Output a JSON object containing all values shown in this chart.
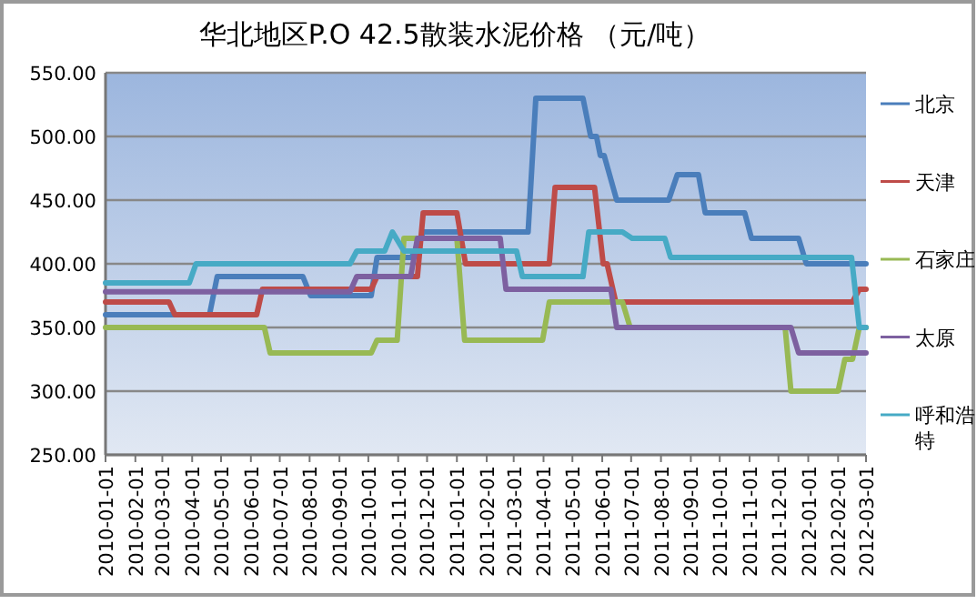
{
  "chart_data": {
    "type": "line",
    "title": "华北地区P.O 42.5散装水泥价格 （元/吨）",
    "ylim": [
      250,
      550
    ],
    "yticks": [
      {
        "value": 250,
        "label": "250.00"
      },
      {
        "value": 300,
        "label": "300.00"
      },
      {
        "value": 350,
        "label": "350.00"
      },
      {
        "value": 400,
        "label": "400.00"
      },
      {
        "value": 450,
        "label": "450.00"
      },
      {
        "value": 500,
        "label": "500.00"
      },
      {
        "value": 550,
        "label": "550.00"
      }
    ],
    "xlim": [
      "2010-01-01",
      "2012-03-01"
    ],
    "xticks": [
      "2010-01-01",
      "2010-02-01",
      "2010-03-01",
      "2010-04-01",
      "2010-05-01",
      "2010-06-01",
      "2010-07-01",
      "2010-08-01",
      "2010-09-01",
      "2010-10-01",
      "2010-11-01",
      "2010-12-01",
      "2011-01-01",
      "2011-02-01",
      "2011-03-01",
      "2011-04-01",
      "2011-05-01",
      "2011-06-01",
      "2011-07-01",
      "2011-08-01",
      "2011-09-01",
      "2011-10-01",
      "2011-11-01",
      "2011-12-01",
      "2012-01-01",
      "2012-02-01",
      "2012-03-01"
    ],
    "grid": "y",
    "legend": "right",
    "series": [
      {
        "name": "北京",
        "color": "#4a7ebb",
        "x": [
          "2010-01-01",
          "2010-04-19",
          "2010-04-27",
          "2010-07-25",
          "2010-08-02",
          "2010-10-04",
          "2010-10-10",
          "2010-11-15",
          "2010-11-27",
          "2011-03-16",
          "2011-03-24",
          "2011-05-12",
          "2011-05-20",
          "2011-05-26",
          "2011-05-30",
          "2011-06-03",
          "2011-06-16",
          "2011-08-09",
          "2011-08-18",
          "2011-09-09",
          "2011-09-16",
          "2011-10-27",
          "2011-11-03",
          "2011-12-22",
          "2011-12-30",
          "2012-03-01"
        ],
        "values": [
          360,
          360,
          390,
          390,
          375,
          375,
          405,
          405,
          425,
          425,
          530,
          530,
          500,
          500,
          485,
          485,
          450,
          450,
          470,
          470,
          440,
          440,
          420,
          420,
          400,
          400
        ]
      },
      {
        "name": "天津",
        "color": "#be4b48",
        "x": [
          "2010-01-01",
          "2010-03-08",
          "2010-03-14",
          "2010-06-07",
          "2010-06-13",
          "2010-10-04",
          "2010-10-10",
          "2010-11-21",
          "2010-11-27",
          "2011-01-01",
          "2011-01-10",
          "2011-04-07",
          "2011-04-13",
          "2011-05-24",
          "2011-06-02",
          "2011-06-06",
          "2011-06-15",
          "2012-02-16",
          "2012-02-23",
          "2012-03-01"
        ],
        "values": [
          370,
          370,
          360,
          360,
          380,
          380,
          390,
          390,
          440,
          440,
          400,
          400,
          460,
          460,
          400,
          400,
          370,
          370,
          380,
          380
        ]
      },
      {
        "name": "石家庄",
        "color": "#98b954",
        "x": [
          "2010-01-01",
          "2010-06-15",
          "2010-06-21",
          "2010-10-04",
          "2010-10-10",
          "2010-10-31",
          "2010-11-07",
          "2011-01-01",
          "2011-01-09",
          "2011-03-31",
          "2011-04-07",
          "2011-06-22",
          "2011-06-30",
          "2011-12-08",
          "2011-12-14",
          "2012-02-01",
          "2012-02-08",
          "2012-02-16",
          "2012-02-23",
          "2012-03-01"
        ],
        "values": [
          350,
          350,
          330,
          330,
          340,
          340,
          420,
          420,
          340,
          340,
          370,
          370,
          350,
          350,
          300,
          300,
          325,
          325,
          350,
          350
        ]
      },
      {
        "name": "太原",
        "color": "#7d60a0",
        "x": [
          "2010-01-01",
          "2010-09-12",
          "2010-09-19",
          "2010-11-14",
          "2010-11-21",
          "2011-02-15",
          "2011-02-21",
          "2011-06-10",
          "2011-06-16",
          "2011-12-14",
          "2011-12-22",
          "2012-03-01"
        ],
        "values": [
          378,
          378,
          390,
          390,
          420,
          420,
          380,
          380,
          350,
          350,
          330,
          330
        ]
      },
      {
        "name": "呼和浩特",
        "color": "#46aac5",
        "x": [
          "2010-01-01",
          "2010-03-29",
          "2010-04-05",
          "2010-09-12",
          "2010-09-19",
          "2010-10-18",
          "2010-10-26",
          "2010-11-07",
          "2011-03-04",
          "2011-03-10",
          "2011-05-12",
          "2011-05-18",
          "2011-06-22",
          "2011-07-02",
          "2011-08-05",
          "2011-08-11",
          "2012-02-15",
          "2012-02-23",
          "2012-03-01"
        ],
        "values": [
          385,
          385,
          400,
          400,
          410,
          410,
          425,
          410,
          410,
          390,
          390,
          425,
          425,
          420,
          420,
          405,
          405,
          350,
          350
        ]
      }
    ]
  }
}
